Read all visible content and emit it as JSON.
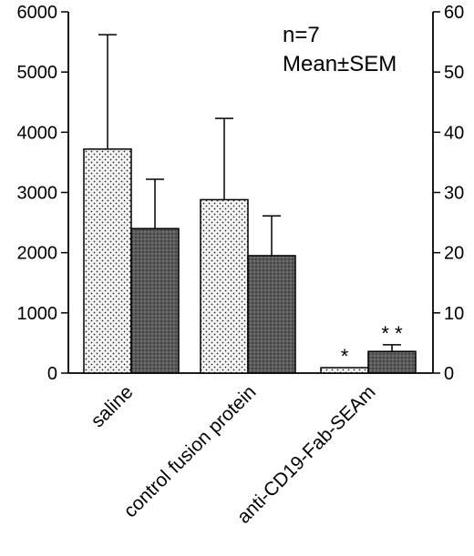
{
  "chart_data": {
    "type": "bar",
    "categories": [
      "saline",
      "control fusion protein",
      "anti-CD19-Fab-SEAm"
    ],
    "series": [
      {
        "axis": "left",
        "pattern": "dotted",
        "values": [
          3720,
          2880,
          90
        ],
        "error": [
          1900,
          1350,
          0
        ],
        "significance": [
          "",
          "",
          "*"
        ]
      },
      {
        "axis": "right",
        "pattern": "dark-hatched",
        "values": [
          24,
          19.5,
          3.6
        ],
        "error": [
          8.2,
          6.6,
          1.1
        ],
        "significance": [
          "",
          "",
          "* *"
        ]
      }
    ],
    "left_axis": {
      "ylim": [
        0,
        6000
      ],
      "ticks": [
        "0",
        "1000",
        "2000",
        "3000",
        "4000",
        "5000",
        "6000"
      ]
    },
    "right_axis": {
      "ylim": [
        0,
        60
      ],
      "ticks": [
        "0",
        "10",
        "20",
        "30",
        "40",
        "50",
        "60"
      ]
    },
    "annotations": [
      "n=7",
      "Mean±SEM"
    ],
    "legend": "none"
  }
}
